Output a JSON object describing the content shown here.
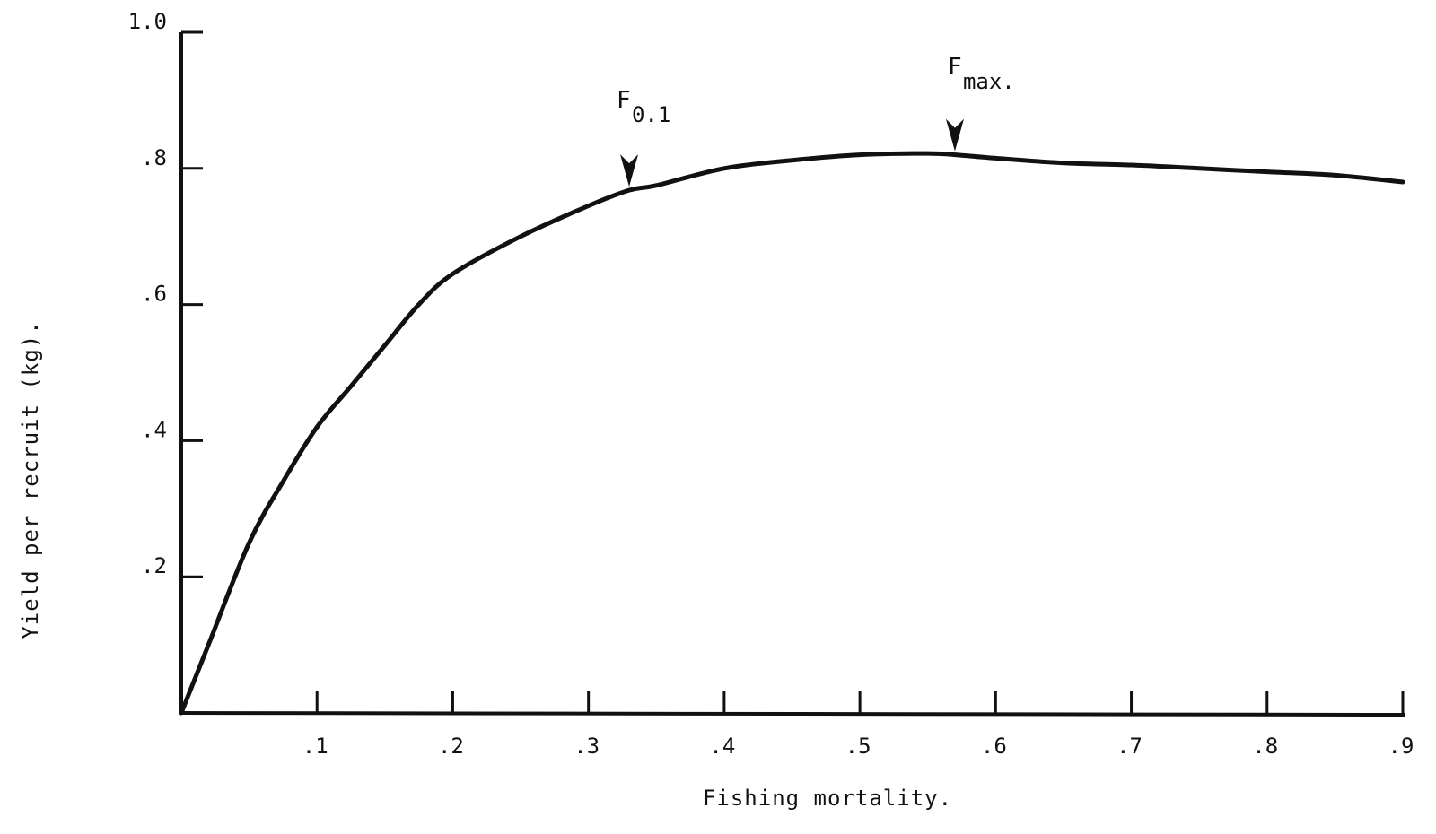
{
  "chart_data": {
    "type": "line",
    "title": "",
    "xlabel": "Fishing mortality.",
    "ylabel": "Yield per recruit (kg).",
    "xlim": [
      0,
      0.9
    ],
    "ylim": [
      0,
      1.0
    ],
    "grid": false,
    "x_ticks": [
      0.1,
      0.2,
      0.3,
      0.4,
      0.5,
      0.6,
      0.7,
      0.8,
      0.9
    ],
    "x_tick_labels": [
      ".1",
      ".2",
      ".3",
      ".4",
      ".5",
      ".6",
      ".7",
      ".8",
      ".9"
    ],
    "y_ticks": [
      0.2,
      0.4,
      0.6,
      0.8,
      1.0
    ],
    "y_tick_labels": [
      ".2",
      ".4",
      ".6",
      ".8",
      "1.0"
    ],
    "series": [
      {
        "x": [
          0,
          0.02,
          0.05,
          0.075,
          0.1,
          0.125,
          0.15,
          0.175,
          0.2,
          0.25,
          0.3,
          0.33,
          0.35,
          0.4,
          0.45,
          0.5,
          0.55,
          0.57,
          0.6,
          0.65,
          0.7,
          0.75,
          0.8,
          0.85,
          0.9
        ],
        "y": [
          0,
          0.1,
          0.25,
          0.34,
          0.42,
          0.48,
          0.54,
          0.6,
          0.645,
          0.7,
          0.745,
          0.768,
          0.775,
          0.8,
          0.812,
          0.82,
          0.822,
          0.82,
          0.815,
          0.808,
          0.805,
          0.8,
          0.795,
          0.79,
          0.78
        ]
      }
    ],
    "annotations": [
      {
        "label": "F",
        "subscript": "0.1",
        "x": 0.33,
        "y": 0.768
      },
      {
        "label": "F",
        "subscript": "max.",
        "x": 0.57,
        "y": 0.82
      }
    ]
  }
}
